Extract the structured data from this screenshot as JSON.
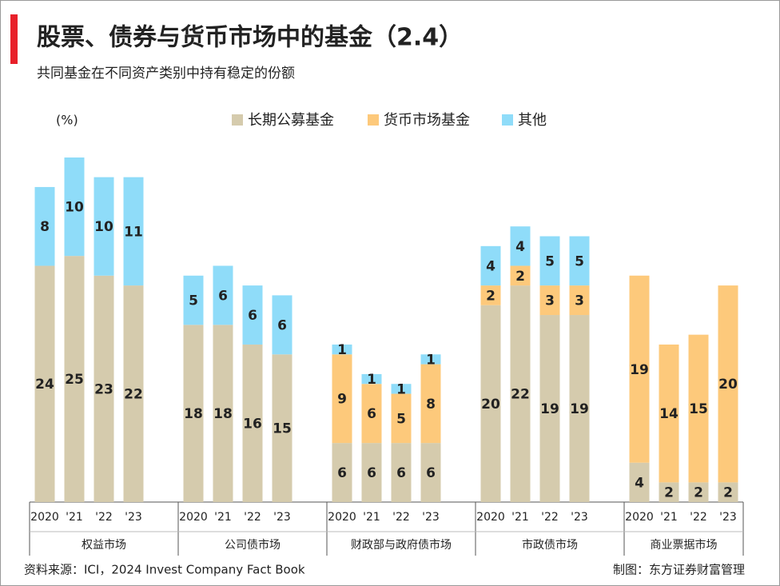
{
  "chart_data": {
    "type": "bar",
    "stacked": true,
    "title": "股票、债券与货币市场中的基金（2.4）",
    "subtitle": "共同基金在不同资产类别中持有稳定的份额",
    "y_unit": "(%)",
    "categories": [
      "2020",
      "'21",
      "'22",
      "'23",
      "2020",
      "'21",
      "'22",
      "'23",
      "2020",
      "'21",
      "'22",
      "'23",
      "2020",
      "'21",
      "'22",
      "'23",
      "2020",
      "'21",
      "'22",
      "'23"
    ],
    "group_labels": [
      "权益市场",
      "公司债市场",
      "财政部与政府债市场",
      "市政债市场",
      "商业票据市场"
    ],
    "series": [
      {
        "name": "长期公募基金",
        "color": "#d5cbad",
        "values": [
          24,
          25,
          23,
          22,
          18,
          18,
          16,
          15,
          6,
          6,
          6,
          6,
          20,
          22,
          19,
          19,
          4,
          2,
          2,
          2
        ]
      },
      {
        "name": "货币市场基金",
        "color": "#fdc97b",
        "values": [
          null,
          null,
          null,
          null,
          null,
          null,
          null,
          null,
          9,
          6,
          5,
          8,
          2,
          2,
          3,
          3,
          19,
          14,
          15,
          20
        ]
      },
      {
        "name": "其他",
        "color": "#8fdcf9",
        "values": [
          8,
          10,
          10,
          11,
          5,
          6,
          6,
          6,
          1,
          1,
          1,
          1,
          4,
          4,
          5,
          5,
          null,
          null,
          null,
          null
        ]
      }
    ],
    "source": "资料来源：ICI，2024 Invest Company Fact Book",
    "credit": "制图：东方证券财富管理"
  }
}
